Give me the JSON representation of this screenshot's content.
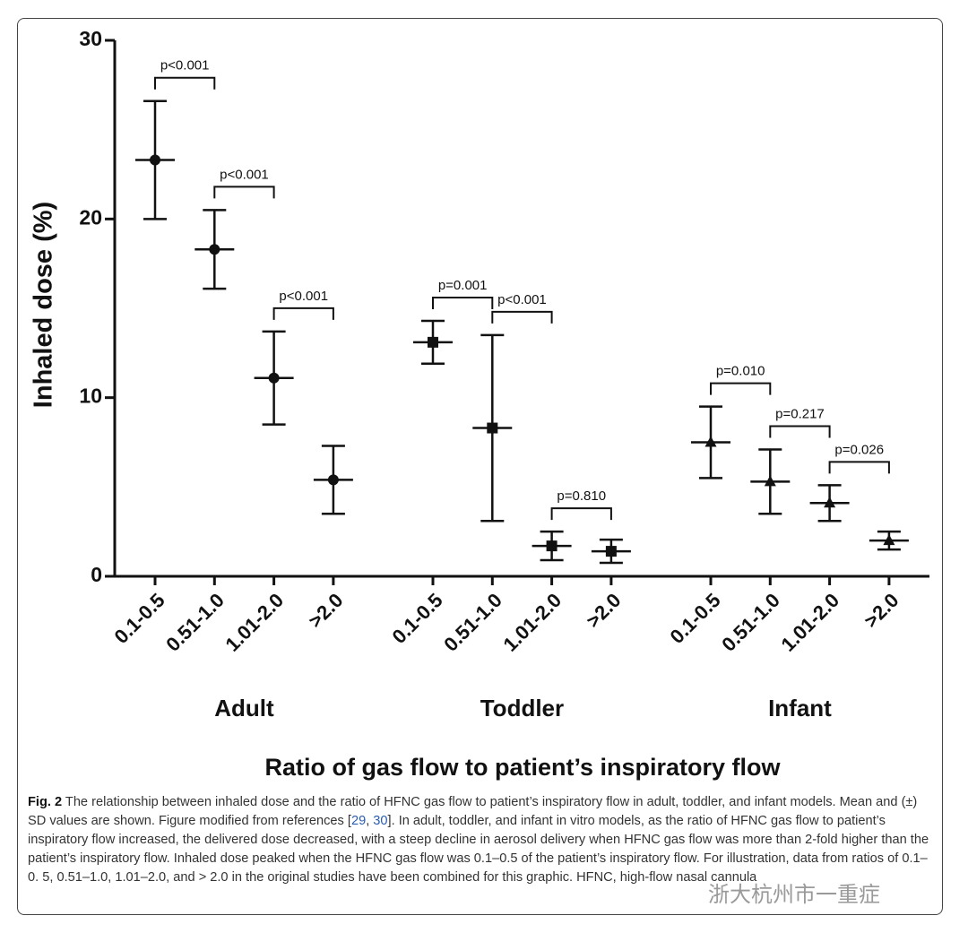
{
  "chart_data": {
    "type": "errorbar",
    "y_label": "Inhaled dose (%)",
    "x_label": "Ratio of gas flow to patient’s inspiratory flow",
    "ylim": [
      0,
      30
    ],
    "yticks": [
      0,
      10,
      20,
      30
    ],
    "color": "#111111",
    "series": [
      {
        "name": "Adult",
        "marker": "circle",
        "categories": [
          "0.1-0.5",
          "0.51-1.0",
          "1.01-2.0",
          ">2.0"
        ],
        "values": [
          23.3,
          18.3,
          11.1,
          5.4
        ],
        "errors": [
          3.3,
          2.2,
          2.6,
          1.9
        ],
        "p_values": [
          "p<0.001",
          "p<0.001",
          "p<0.001"
        ]
      },
      {
        "name": "Toddler",
        "marker": "square",
        "categories": [
          "0.1-0.5",
          "0.51-1.0",
          "1.01-2.0",
          ">2.0"
        ],
        "values": [
          13.1,
          8.3,
          1.7,
          1.4
        ],
        "errors": [
          1.2,
          5.2,
          0.8,
          0.65
        ],
        "p_values": [
          "p=0.001",
          "p<0.001",
          "p=0.810"
        ]
      },
      {
        "name": "Infant",
        "marker": "triangle",
        "categories": [
          "0.1-0.5",
          "0.51-1.0",
          "1.01-2.0",
          ">2.0"
        ],
        "values": [
          7.5,
          5.3,
          4.1,
          2.0
        ],
        "errors": [
          2.0,
          1.8,
          1.0,
          0.5
        ],
        "p_values": [
          "p=0.010",
          "p=0.217",
          "p=0.026"
        ]
      }
    ]
  },
  "caption": {
    "label": "Fig. 2",
    "text1": "The relationship between inhaled dose and the ratio of HFNC gas flow to patient’s inspiratory flow in adult, toddler, and infant models. Mean and (±) SD values are shown. Figure modified from references [",
    "ref1": "29",
    "sep": ", ",
    "ref2": "30",
    "text2": "]. In adult, toddler, and infant in vitro models, as the ratio of HFNC gas flow to patient’s inspiratory flow increased, the delivered dose decreased, with a steep decline in aerosol delivery when HFNC gas flow was more than 2-fold higher than the patient’s inspiratory flow. Inhaled dose peaked when the HFNC gas flow was 0.1–0.5 of the patient’s inspiratory flow. For illustration, data from ratios of 0.1–0. 5, 0.51–1.0, 1.01–2.0, and > 2.0 in the original studies have been combined for this graphic. HFNC, high-flow nasal cannula"
  },
  "watermark": "浙大杭州市一重症"
}
